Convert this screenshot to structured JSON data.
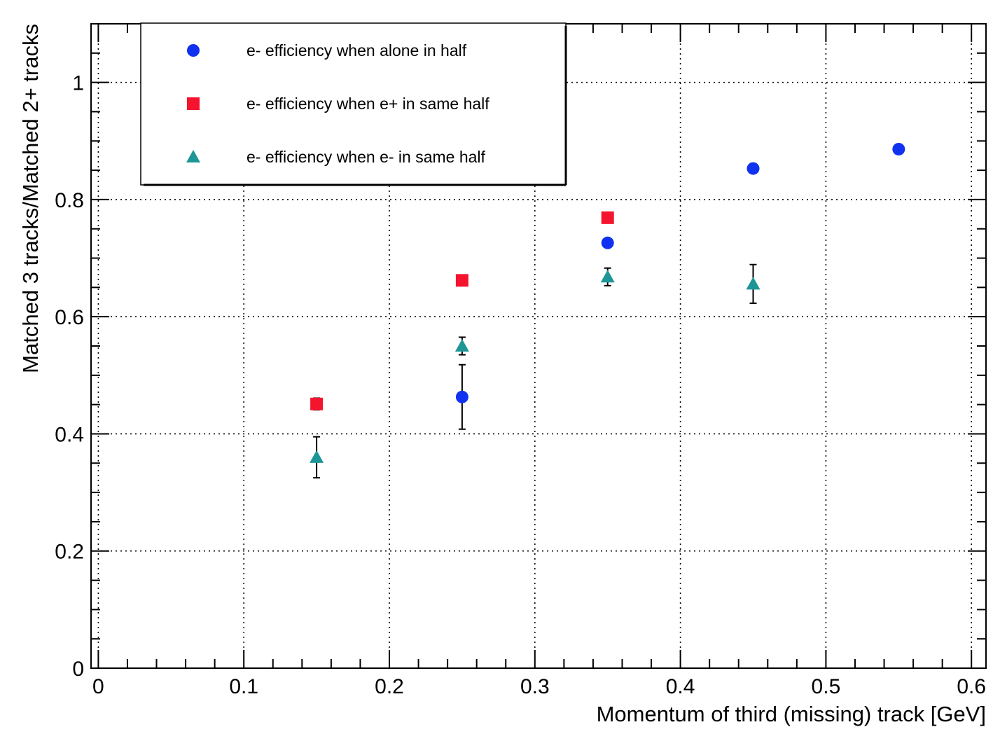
{
  "chart_data": {
    "type": "scatter",
    "xlabel": "Momentum of third (missing) track [GeV]",
    "ylabel": "Matched 3 tracks/Matched 2+ tracks",
    "xlim": [
      -0.005,
      0.61
    ],
    "ylim": [
      0,
      1.1
    ],
    "x_ticks": [
      0,
      0.1,
      0.2,
      0.3,
      0.4,
      0.5,
      0.6
    ],
    "x_tick_labels": [
      "0",
      "0.1",
      "0.2",
      "0.3",
      "0.4",
      "0.5",
      "0.6"
    ],
    "y_ticks": [
      0,
      0.2,
      0.4,
      0.6,
      0.8,
      1
    ],
    "y_tick_labels": [
      "0",
      "0.2",
      "0.4",
      "0.6",
      "0.8",
      "1"
    ],
    "grid": true,
    "legend_position": "top-left",
    "series": [
      {
        "name": "e- efficiency when alone in half",
        "marker": "circle",
        "color": "#1032f0",
        "points": [
          {
            "x": 0.25,
            "y": 0.463,
            "err": 0.055
          },
          {
            "x": 0.35,
            "y": 0.726,
            "err": 0.0
          },
          {
            "x": 0.45,
            "y": 0.853,
            "err": 0.0
          },
          {
            "x": 0.55,
            "y": 0.886,
            "err": 0.0
          }
        ]
      },
      {
        "name": "e- efficiency when e+ in same half",
        "marker": "square",
        "color": "#f5142d",
        "points": [
          {
            "x": 0.15,
            "y": 0.451,
            "err": 0.01
          },
          {
            "x": 0.25,
            "y": 0.662,
            "err": 0.0
          },
          {
            "x": 0.35,
            "y": 0.769,
            "err": 0.0
          }
        ]
      },
      {
        "name": "e- efficiency when e- in same half",
        "marker": "triangle",
        "color": "#1e9696",
        "points": [
          {
            "x": 0.15,
            "y": 0.36,
            "err": 0.035
          },
          {
            "x": 0.25,
            "y": 0.55,
            "err": 0.015
          },
          {
            "x": 0.35,
            "y": 0.668,
            "err": 0.015
          },
          {
            "x": 0.45,
            "y": 0.656,
            "err": 0.033
          }
        ]
      }
    ]
  }
}
